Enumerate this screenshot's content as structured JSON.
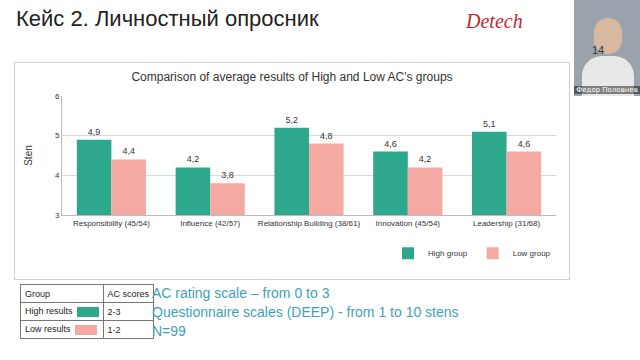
{
  "slide": {
    "title": "Кейс 2. Личностный опросник",
    "logo": "Detech",
    "page": "14",
    "speaker": "Федор Половнев",
    "table": {
      "header": [
        "Group",
        "AC scores"
      ],
      "rows": [
        [
          "High results",
          "2-3"
        ],
        [
          "Low results",
          "1-2"
        ]
      ]
    },
    "notes": [
      "AC rating scale – from 0 to 3",
      "Questionnaire scales (DEEP) - from 1 to 10 stens",
      "N=99"
    ]
  },
  "chart_data": {
    "type": "bar",
    "title": "Comparison of average results of High and Low AC's groups",
    "y_label": "Sten",
    "categories": [
      "Responsibility (45/54)",
      "Influence (42/57)",
      "Relationship Building (38/61)",
      "Innovation (45/54)",
      "Leadership (31/68)"
    ],
    "series": [
      {
        "name": "High group",
        "color": "#2ea88c",
        "values": [
          4.9,
          4.2,
          5.2,
          4.6,
          5.1
        ],
        "value_labels": [
          "4,9",
          "4,2",
          "5,2",
          "4,6",
          "5,1"
        ]
      },
      {
        "name": "Low group",
        "color": "#f4aaa2",
        "values": [
          4.4,
          3.8,
          4.8,
          4.2,
          4.6
        ],
        "value_labels": [
          "4,4",
          "3,8",
          "4,8",
          "4,2",
          "4,6"
        ]
      }
    ],
    "ylim": [
      3,
      6
    ],
    "yticks": [
      3,
      4,
      5,
      6
    ],
    "grid": true,
    "legend": "bottom",
    "data_labels": true
  }
}
